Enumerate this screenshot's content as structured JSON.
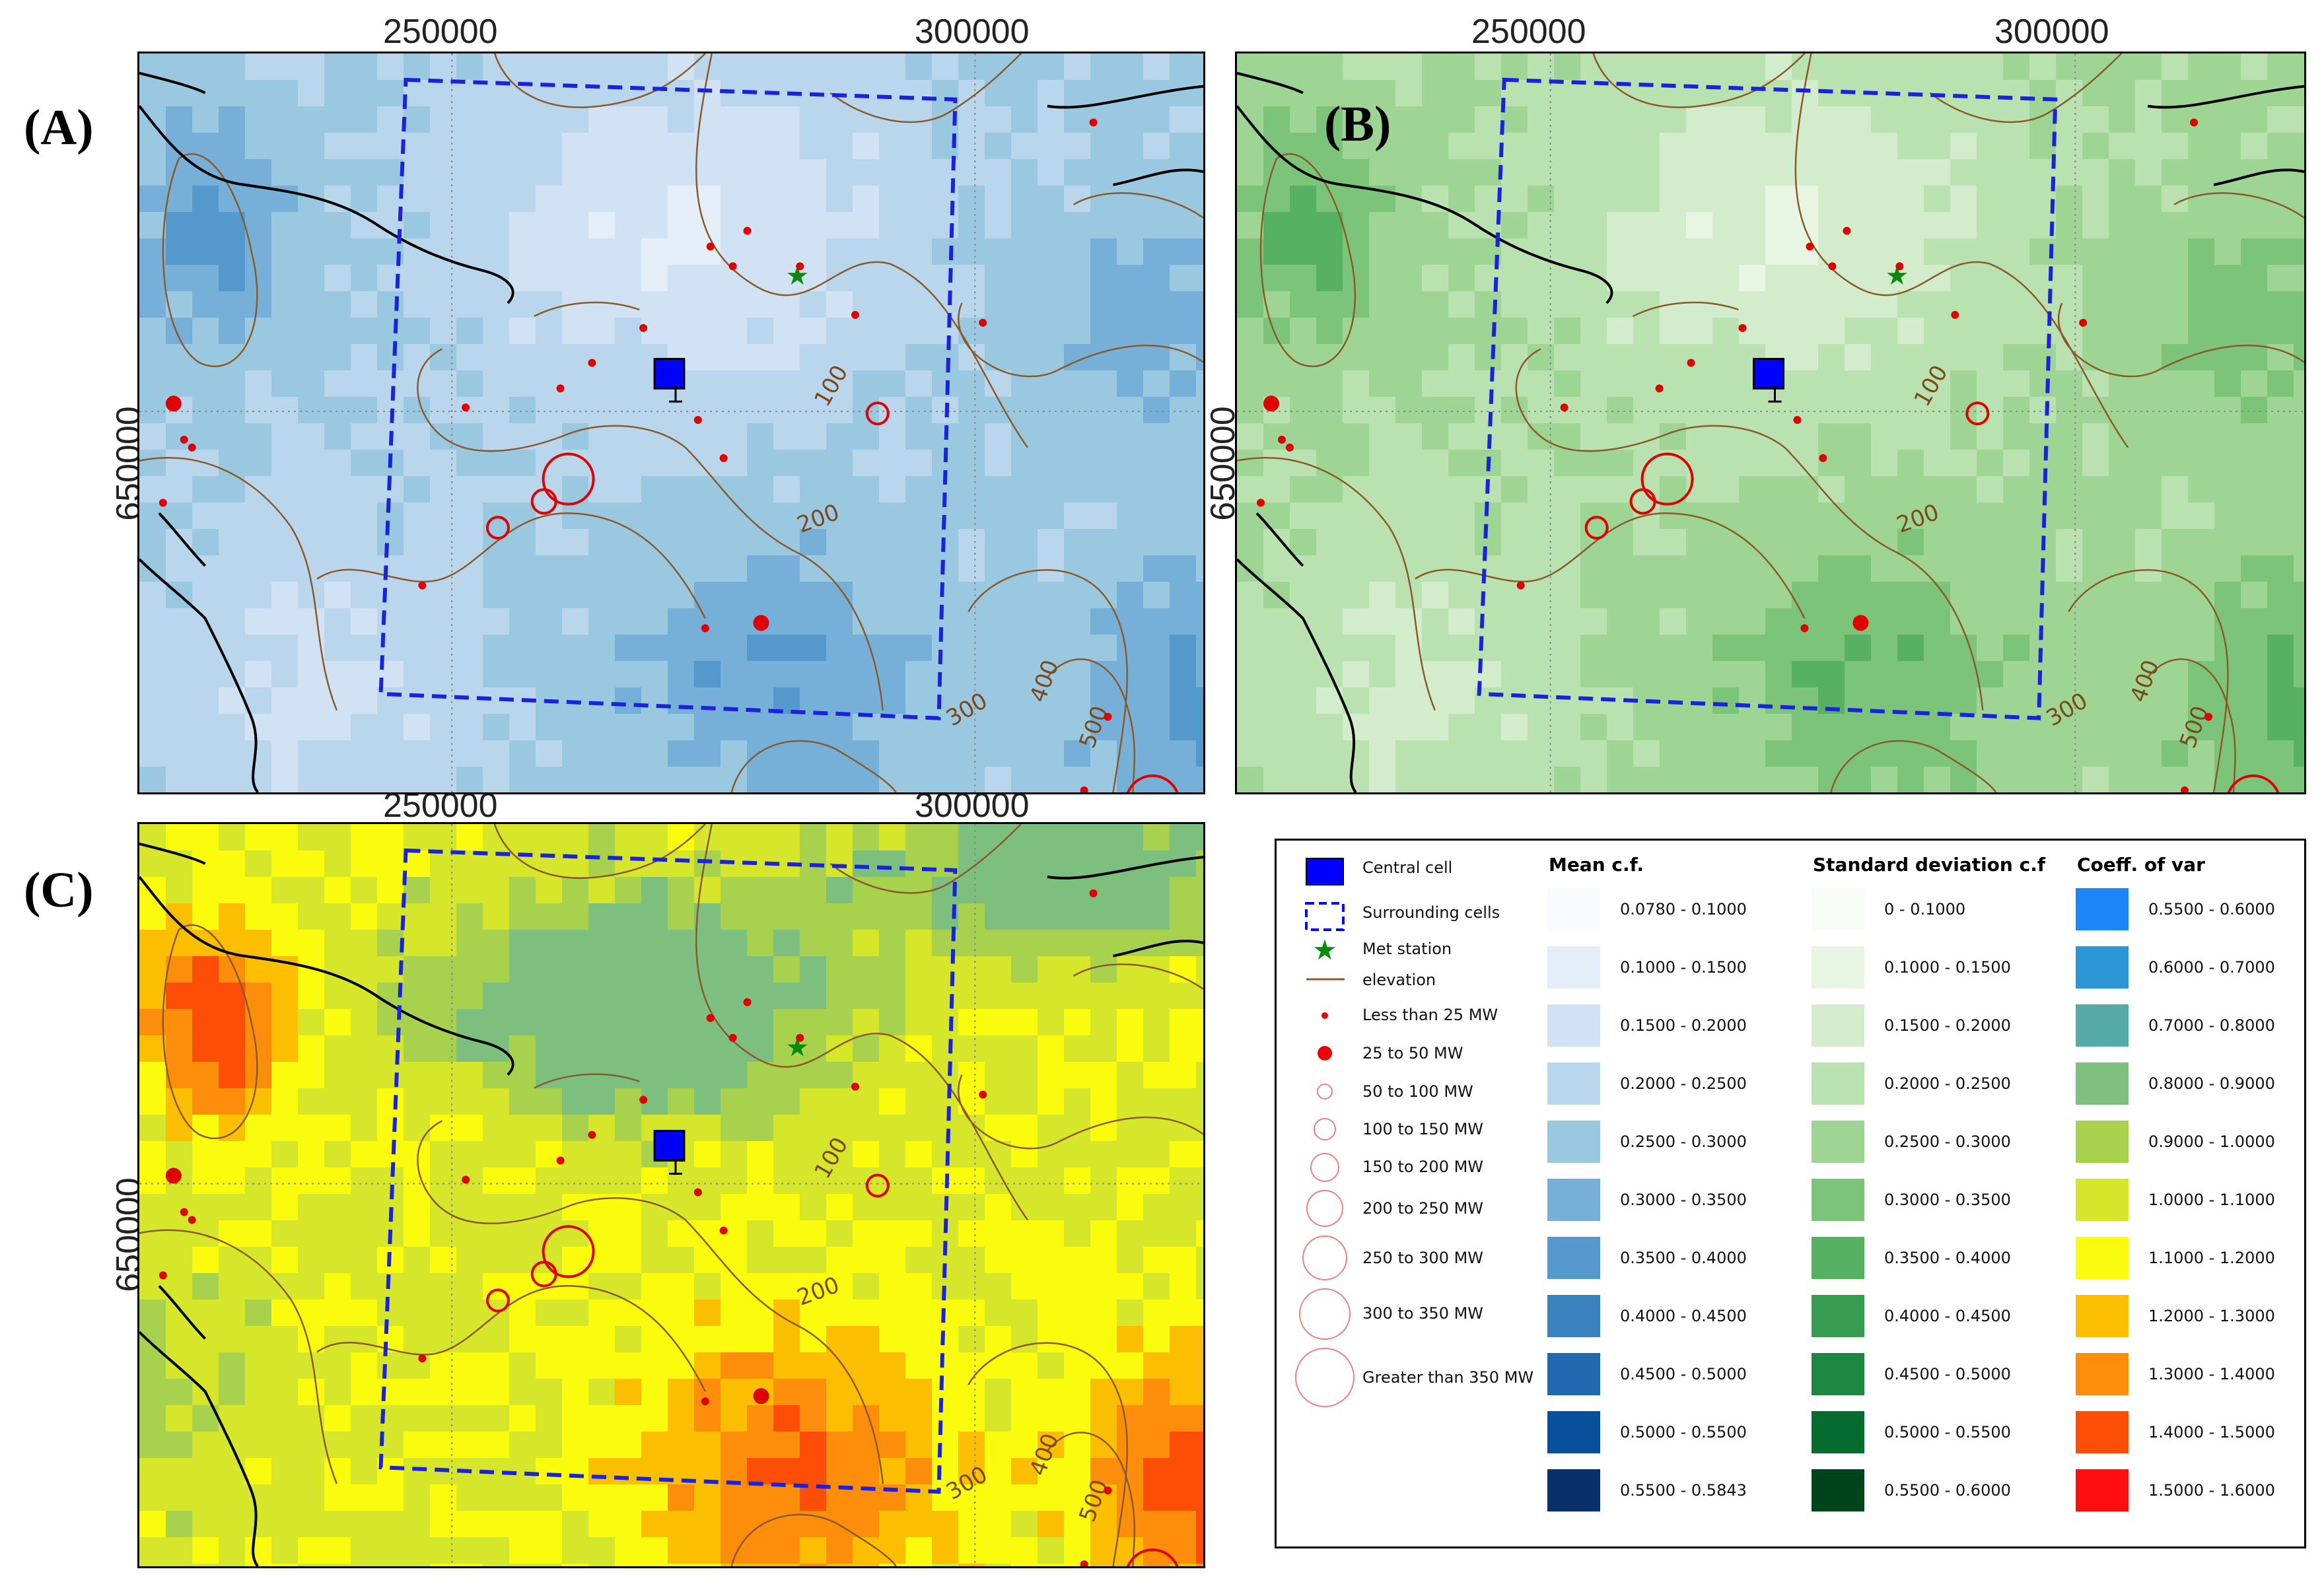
{
  "panels": [
    {
      "label": "(A)",
      "x_ticks": [
        "250000",
        "300000"
      ],
      "y_tick": "650000"
    },
    {
      "label": "(B)",
      "x_ticks": [
        "250000",
        "300000"
      ],
      "y_tick": "650000"
    },
    {
      "label": "(C)",
      "x_ticks": [
        "250000",
        "300000"
      ],
      "y_tick": "650000"
    }
  ],
  "contour_labels": [
    "100",
    "200",
    "300",
    "400",
    "500"
  ],
  "legend": {
    "symbols": [
      {
        "label": "Central cell"
      },
      {
        "label": "Surrounding cells"
      },
      {
        "label": "Met station"
      },
      {
        "label": "elevation"
      },
      {
        "label": "Less than 25 MW"
      },
      {
        "label": "25 to 50 MW"
      },
      {
        "label": "50 to 100 MW"
      },
      {
        "label": "100 to 150 MW"
      },
      {
        "label": "150 to 200 MW"
      },
      {
        "label": "200 to 250 MW"
      },
      {
        "label": "250 to 300 MW"
      },
      {
        "label": "300 to 350 MW"
      },
      {
        "label": "Greater than 350 MW"
      }
    ],
    "mean": {
      "title": "Mean c.f.",
      "items": [
        {
          "label": "0.0780 - 0.1000",
          "color": "#f7fbff"
        },
        {
          "label": "0.1000 - 0.1500",
          "color": "#e3eef9"
        },
        {
          "label": "0.1500 - 0.2000",
          "color": "#d0e2f3"
        },
        {
          "label": "0.2000 - 0.2500",
          "color": "#bad6ec"
        },
        {
          "label": "0.2500 - 0.3000",
          "color": "#9ac8e0"
        },
        {
          "label": "0.3000 - 0.3500",
          "color": "#76b0d8"
        },
        {
          "label": "0.3500 - 0.4000",
          "color": "#5498cc"
        },
        {
          "label": "0.4000 - 0.4500",
          "color": "#3a82bf"
        },
        {
          "label": "0.4500 - 0.5000",
          "color": "#2169ae"
        },
        {
          "label": "0.5000 - 0.5500",
          "color": "#08509b"
        },
        {
          "label": "0.5500 - 0.5843",
          "color": "#08306b"
        }
      ]
    },
    "std": {
      "title": "Standard deviation c.f",
      "items": [
        {
          "label": "0 - 0.1000",
          "color": "#f7fcf5"
        },
        {
          "label": "0.1000 - 0.1500",
          "color": "#e8f5e3"
        },
        {
          "label": "0.1500 - 0.2000",
          "color": "#d3edcc"
        },
        {
          "label": "0.2000 - 0.2500",
          "color": "#b9e2b0"
        },
        {
          "label": "0.2500 - 0.3000",
          "color": "#9ed595"
        },
        {
          "label": "0.3000 - 0.3500",
          "color": "#7cc47a"
        },
        {
          "label": "0.3500 - 0.4000",
          "color": "#56b262"
        },
        {
          "label": "0.4000 - 0.4500",
          "color": "#379c52"
        },
        {
          "label": "0.4500 - 0.5000",
          "color": "#1d8641"
        },
        {
          "label": "0.5000 - 0.5500",
          "color": "#066b2e"
        },
        {
          "label": "0.5500 - 0.6000",
          "color": "#00441b"
        }
      ]
    },
    "cov": {
      "title": "Coeff. of var",
      "items": [
        {
          "label": "0.5500 - 0.6000",
          "color": "#1a86f7"
        },
        {
          "label": "0.6000 - 0.7000",
          "color": "#2a96d6"
        },
        {
          "label": "0.7000 - 0.8000",
          "color": "#54aaa8"
        },
        {
          "label": "0.8000 - 0.9000",
          "color": "#7cbf7e"
        },
        {
          "label": "0.9000 - 1.0000",
          "color": "#a8d24e"
        },
        {
          "label": "1.0000 - 1.1000",
          "color": "#d6e62a"
        },
        {
          "label": "1.1000 - 1.2000",
          "color": "#fbfb0e"
        },
        {
          "label": "1.2000 - 1.3000",
          "color": "#fcbe00"
        },
        {
          "label": "1.3000 - 1.4000",
          "color": "#fd8e0c"
        },
        {
          "label": "1.4000 - 1.5000",
          "color": "#fd4e07"
        },
        {
          "label": "1.5000 - 1.6000",
          "color": "#fe0e0e"
        }
      ]
    }
  }
}
